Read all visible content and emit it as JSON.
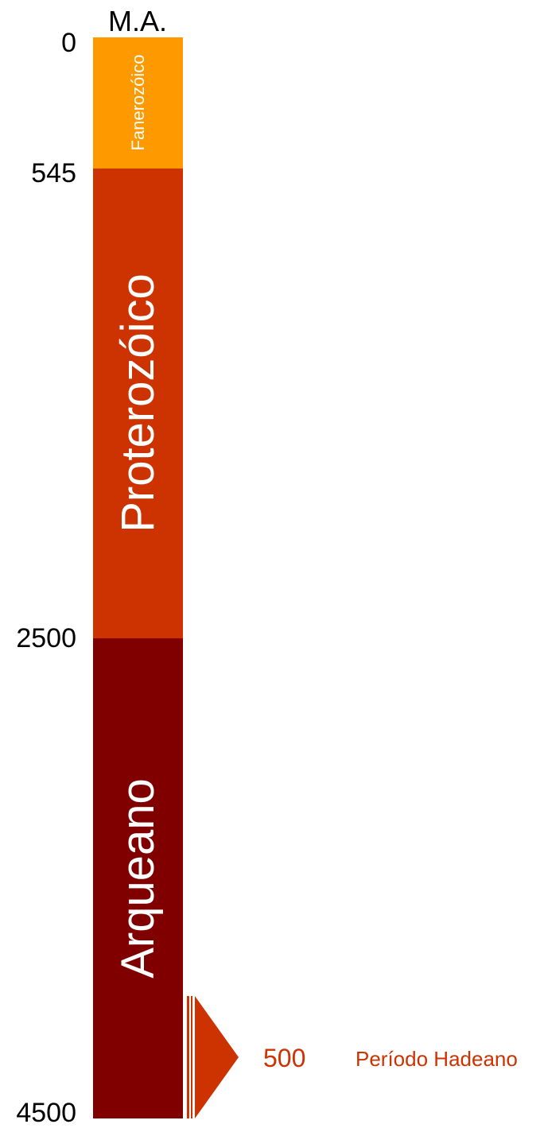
{
  "unit_label": "M.A.",
  "ticks": [
    {
      "value": 0,
      "label": "0"
    },
    {
      "value": 545,
      "label": "545"
    },
    {
      "value": 2500,
      "label": "2500"
    },
    {
      "value": 4500,
      "label": "4500"
    }
  ],
  "eons": [
    {
      "name": "Fanerozóico",
      "start": 0,
      "end": 545,
      "color": "#ff9900"
    },
    {
      "name": "Proterozóico",
      "start": 545,
      "end": 2500,
      "color": "#cc3300"
    },
    {
      "name": "Arqueano",
      "start": 2500,
      "end": 4500,
      "color": "#800000"
    }
  ],
  "hadean": {
    "duration_label": "500",
    "name": "Período Hadeano",
    "color": "#cc3300"
  }
}
